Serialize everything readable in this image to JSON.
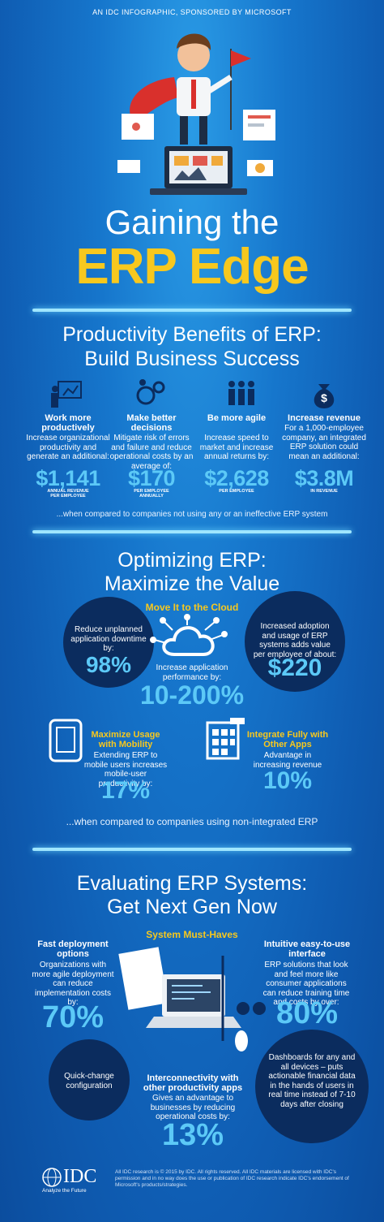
{
  "header": {
    "sponsor": "AN IDC INFOGRAPHIC, SPONSORED BY MICROSOFT"
  },
  "title": {
    "line1": "Gaining the",
    "line2": "ERP Edge"
  },
  "productivity": {
    "heading": [
      "Productivity Benefits of ERP:",
      "Build Business Success"
    ],
    "items": [
      {
        "heading": "Work more productively",
        "body": "Increase organizational productivity and generate an additional:",
        "stat": "$1,141",
        "note": "ANNUAL REVENUE PER EMPLOYEE"
      },
      {
        "heading": "Make better decisions",
        "body": "Mitigate risk of errors and failure and reduce operational costs by an average of:",
        "stat": "$170",
        "note": "PER EMPLOYEE ANNUALLY"
      },
      {
        "heading": "Be more agile",
        "body": "Increase speed to market and increase annual returns by:",
        "stat": "$2,628",
        "note": "PER EMPLOYEE"
      },
      {
        "heading": "Increase revenue",
        "body": "For a 1,000-employee company, an integrated ERP solution could mean an additional:",
        "stat": "$3.8M",
        "note": "IN REVENUE"
      }
    ],
    "footnote": "...when compared to companies not using any or an ineffective ERP system"
  },
  "optimizing": {
    "heading": [
      "Optimizing ERP:",
      "Maximize the Value"
    ],
    "cloud_title": "Move It to the Cloud",
    "downtime": {
      "body": "Reduce unplanned application downtime by:",
      "stat": "98%"
    },
    "performance": {
      "body": "Increase application performance by:",
      "stat": "10-200%"
    },
    "adoption": {
      "body": "Increased adoption and usage of ERP systems adds value per employee of about:",
      "stat": "$220"
    },
    "mobility": {
      "heading": "Maximize Usage with Mobility",
      "body": "Extending ERP to mobile users increases mobile-user productivity by:",
      "stat": "17%"
    },
    "integrate": {
      "heading": "Integrate Fully with Other Apps",
      "body": "Advantage in increasing revenue",
      "stat": "10%"
    },
    "footnote": "...when compared to companies using non-integrated ERP"
  },
  "evaluating": {
    "heading": [
      "Evaluating ERP Systems:",
      "Get Next Gen Now"
    ],
    "subtitle": "System Must-Haves",
    "fast": {
      "heading": "Fast deployment options",
      "body": "Organizations with more agile deployment can reduce implementation costs by:",
      "stat": "70%"
    },
    "intuitive": {
      "heading": "Intuitive easy-to-use interface",
      "body": "ERP solutions that look and feel more like consumer applications can reduce training time and costs by over:",
      "stat": "80%"
    },
    "quick_change": "Quick-change configuration",
    "interconnect": {
      "heading": "Interconnectivity with other productivity apps",
      "body": "Gives an advantage to businesses by reducing operational costs by:",
      "stat": "13%"
    },
    "dashboards": "Dashboards for any and all devices – puts actionable financial data in the hands of users in real time instead of 7-10 days after closing"
  },
  "footer": {
    "logo": "IDC",
    "tagline": "Analyze the Future",
    "legal": "All IDC research is © 2015 by IDC. All rights reserved. All IDC materials are licensed with IDC's permission and in no way does the use or publication of IDC research indicate IDC's endorsement of Microsoft's products/strategies."
  }
}
